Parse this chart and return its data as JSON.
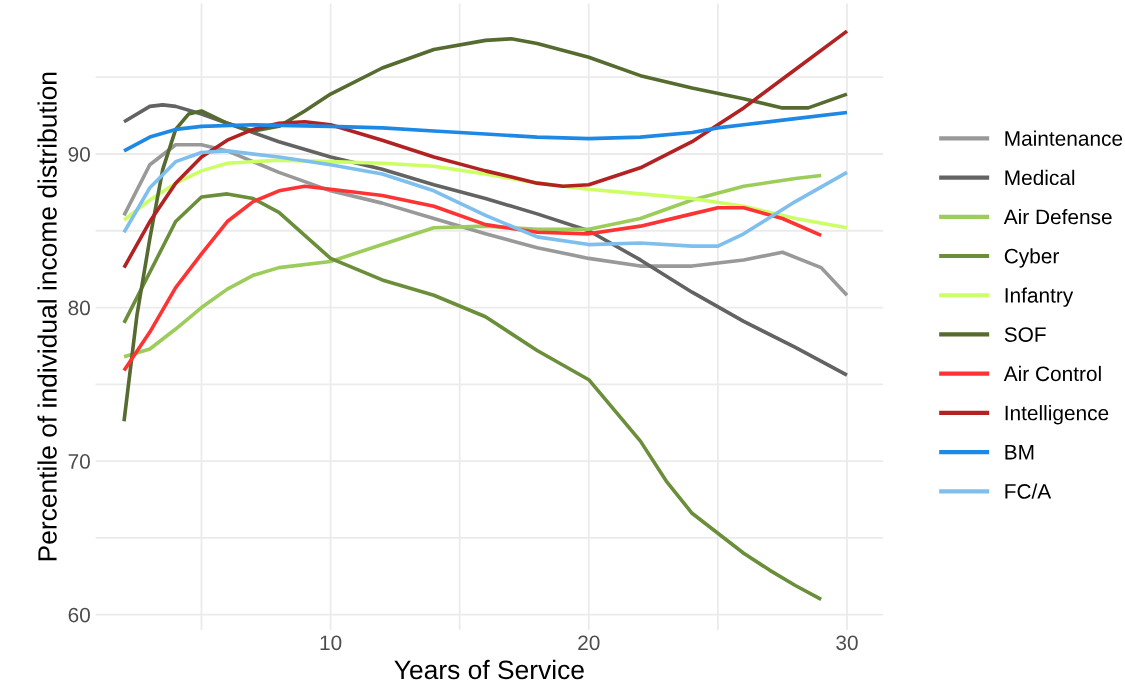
{
  "chart_data": {
    "type": "line",
    "xlabel": "Years of Service",
    "ylabel": "Percentile of individual income distribution",
    "xlim": [
      0.9,
      31.4
    ],
    "ylim": [
      59,
      99.8
    ],
    "xticks": [
      {
        "value": 5,
        "label": null
      },
      10,
      {
        "value": 15,
        "label": null
      },
      20,
      {
        "value": 25,
        "label": null
      },
      30
    ],
    "yticks": [
      60,
      {
        "value": 65,
        "label": null
      },
      70,
      {
        "value": 75,
        "label": null
      },
      80,
      {
        "value": 85,
        "label": null
      },
      90,
      {
        "value": 95,
        "label": null
      }
    ],
    "grid": true,
    "legend": "right",
    "marker": "none",
    "line_style": "solid",
    "series": [
      {
        "name": "Maintenance",
        "color": "#999999",
        "x": [
          2,
          3,
          4,
          5,
          6,
          8,
          10,
          12,
          14,
          16,
          18,
          20,
          22,
          24,
          26,
          27.5,
          29,
          30
        ],
        "values": [
          86.0,
          89.3,
          90.6,
          90.6,
          90.2,
          88.8,
          87.6,
          86.8,
          85.8,
          84.8,
          83.9,
          83.2,
          82.7,
          82.7,
          83.1,
          83.6,
          82.6,
          80.8
        ]
      },
      {
        "name": "Medical",
        "color": "#636363",
        "x": [
          2,
          3,
          3.5,
          4,
          5,
          6,
          8,
          10,
          12,
          14,
          16,
          18,
          20,
          22,
          24,
          26,
          28,
          30
        ],
        "values": [
          92.1,
          93.1,
          93.2,
          93.1,
          92.6,
          92.0,
          90.8,
          89.8,
          89.0,
          88.0,
          87.1,
          86.1,
          85.0,
          83.1,
          81.0,
          79.1,
          77.4,
          75.6
        ]
      },
      {
        "name": "Air Defense",
        "color": "#9ccc5a",
        "x": [
          2,
          3,
          4,
          5,
          6,
          7,
          8,
          10,
          12,
          14,
          16,
          18,
          20,
          22,
          24,
          26,
          28,
          29
        ],
        "values": [
          76.8,
          77.3,
          78.6,
          80.0,
          81.2,
          82.1,
          82.6,
          83.0,
          84.1,
          85.2,
          85.3,
          85.1,
          85.1,
          85.8,
          87.0,
          87.9,
          88.4,
          88.6
        ]
      },
      {
        "name": "Cyber",
        "color": "#6b8e3a",
        "x": [
          2,
          3,
          4,
          5,
          6,
          7,
          8,
          10,
          12,
          14,
          16,
          18,
          20,
          21,
          22,
          23,
          24,
          25,
          26,
          27,
          28,
          29
        ],
        "values": [
          79.0,
          82.3,
          85.6,
          87.2,
          87.4,
          87.1,
          86.2,
          83.2,
          81.8,
          80.8,
          79.4,
          77.2,
          75.3,
          73.3,
          71.3,
          68.7,
          66.6,
          65.3,
          64.0,
          62.9,
          61.9,
          61.0
        ]
      },
      {
        "name": "Infantry",
        "color": "#ccff66",
        "x": [
          2,
          3,
          4,
          5,
          6,
          8,
          10,
          12,
          14,
          16,
          18,
          20,
          22,
          24,
          26,
          28,
          30
        ],
        "values": [
          85.7,
          87.0,
          88.1,
          88.9,
          89.4,
          89.6,
          89.5,
          89.4,
          89.2,
          88.7,
          88.1,
          87.7,
          87.4,
          87.1,
          86.6,
          85.8,
          85.2
        ]
      },
      {
        "name": "SOF",
        "color": "#556b2f",
        "x": [
          2,
          2.5,
          3,
          3.5,
          4,
          4.5,
          5,
          6,
          7,
          8,
          9,
          10,
          12,
          14,
          16,
          17,
          18,
          20,
          22,
          24,
          26,
          27.5,
          28.5,
          30
        ],
        "values": [
          72.6,
          79.5,
          84.5,
          89.0,
          91.6,
          92.6,
          92.8,
          92.0,
          91.5,
          91.8,
          92.8,
          93.9,
          95.6,
          96.8,
          97.4,
          97.5,
          97.2,
          96.3,
          95.1,
          94.3,
          93.6,
          93.0,
          93.0,
          93.9
        ]
      },
      {
        "name": "Air Control",
        "color": "#ff3333",
        "x": [
          2,
          3,
          4,
          5,
          6,
          7,
          8,
          9,
          10,
          12,
          14,
          16,
          18,
          20,
          22,
          24,
          25,
          26,
          27.5,
          29
        ],
        "values": [
          75.9,
          78.4,
          81.3,
          83.5,
          85.6,
          86.9,
          87.6,
          87.9,
          87.7,
          87.3,
          86.6,
          85.4,
          84.9,
          84.8,
          85.3,
          86.1,
          86.5,
          86.5,
          85.8,
          84.7
        ]
      },
      {
        "name": "Intelligence",
        "color": "#b22222",
        "x": [
          2,
          3,
          4,
          5,
          6,
          7,
          8,
          9,
          10,
          12,
          14,
          16,
          18,
          19,
          20,
          22,
          24,
          25,
          26,
          28,
          30
        ],
        "values": [
          82.6,
          85.6,
          88.1,
          89.8,
          90.9,
          91.6,
          92.0,
          92.1,
          91.9,
          90.9,
          89.8,
          88.9,
          88.1,
          87.9,
          88.0,
          89.1,
          90.8,
          91.9,
          93.0,
          95.5,
          98.0
        ]
      },
      {
        "name": "BM",
        "color": "#1e88e5",
        "x": [
          2,
          3,
          4,
          5,
          7,
          10,
          12,
          14,
          16,
          18,
          20,
          22,
          24,
          25,
          26,
          28,
          30
        ],
        "values": [
          90.2,
          91.1,
          91.6,
          91.8,
          91.9,
          91.8,
          91.7,
          91.5,
          91.3,
          91.1,
          91.0,
          91.1,
          91.4,
          91.7,
          91.9,
          92.3,
          92.7
        ]
      },
      {
        "name": "FC/A",
        "color": "#7fbfee",
        "x": [
          2,
          3,
          4,
          5,
          6,
          8,
          10,
          12,
          14,
          16,
          18,
          20,
          22,
          24,
          25,
          26,
          28,
          30
        ],
        "values": [
          84.9,
          87.8,
          89.5,
          90.1,
          90.2,
          89.8,
          89.3,
          88.7,
          87.6,
          86.0,
          84.6,
          84.1,
          84.2,
          84.0,
          84.0,
          84.8,
          86.9,
          88.8
        ]
      }
    ]
  }
}
